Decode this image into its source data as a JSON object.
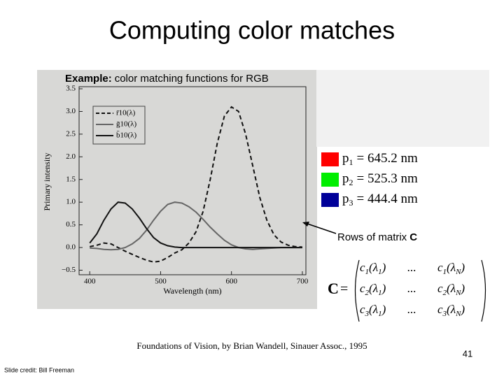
{
  "title": "Computing color matches",
  "example": {
    "bold": "Example:",
    "text": "color matching functions for RGB"
  },
  "chart_data": {
    "type": "line",
    "xlabel": "Wavelength (nm)",
    "ylabel": "Primary intensity",
    "x": [
      400,
      410,
      420,
      430,
      440,
      450,
      460,
      470,
      480,
      490,
      500,
      510,
      520,
      530,
      540,
      550,
      560,
      570,
      580,
      590,
      600,
      610,
      620,
      630,
      640,
      650,
      660,
      670,
      680,
      690,
      700
    ],
    "series": [
      {
        "name": "r̄10(λ)",
        "color": "#111111",
        "dashed": true,
        "values": [
          0.02,
          0.05,
          0.1,
          0.08,
          0.0,
          -0.08,
          -0.15,
          -0.22,
          -0.28,
          -0.32,
          -0.3,
          -0.22,
          -0.12,
          -0.05,
          0.1,
          0.35,
          0.8,
          1.5,
          2.3,
          2.9,
          3.1,
          3.0,
          2.5,
          1.8,
          1.1,
          0.6,
          0.28,
          0.12,
          0.05,
          0.02,
          0.01
        ]
      },
      {
        "name": "ḡ10(λ)",
        "color": "#666666",
        "dashed": false,
        "values": [
          -0.01,
          -0.02,
          -0.04,
          -0.05,
          -0.04,
          0.0,
          0.08,
          0.2,
          0.38,
          0.6,
          0.8,
          0.95,
          1.0,
          0.98,
          0.9,
          0.78,
          0.62,
          0.45,
          0.3,
          0.16,
          0.06,
          0.0,
          -0.03,
          -0.04,
          -0.03,
          -0.02,
          -0.01,
          0,
          0,
          0,
          0
        ]
      },
      {
        "name": "b̄10(λ)",
        "color": "#111111",
        "dashed": false,
        "values": [
          0.1,
          0.3,
          0.6,
          0.85,
          1.0,
          0.98,
          0.85,
          0.65,
          0.42,
          0.22,
          0.1,
          0.04,
          0.01,
          0,
          0,
          0,
          0,
          0,
          0,
          0,
          0,
          0,
          0,
          0,
          0,
          0,
          0,
          0,
          0,
          0,
          0
        ]
      }
    ],
    "xlim": [
      385,
      705
    ],
    "xticks": [
      400,
      500,
      600,
      700
    ],
    "ylim": [
      -0.6,
      3.5
    ],
    "yticks": [
      {
        "value": -0.5,
        "label": "−0.5"
      },
      {
        "value": 0,
        "label": "0.0"
      },
      0.5,
      {
        "value": 1,
        "label": "1.0"
      },
      1.5,
      {
        "value": 2,
        "label": "2.0"
      },
      2.5,
      {
        "value": 3,
        "label": "3.0"
      },
      3.5
    ],
    "legend": "upper left"
  },
  "primaries": [
    {
      "color": "#ff0000",
      "p": "p",
      "sub": "1",
      "text": "= 645.2 nm"
    },
    {
      "color": "#00ee00",
      "p": "p",
      "sub": "2",
      "text": "= 525.3 nm"
    },
    {
      "color": "#000099",
      "p": "p",
      "sub": "3",
      "text": "= 444.4 nm"
    }
  ],
  "rows_note": {
    "text": "Rows of matrix",
    "bold": "C"
  },
  "matrix": {
    "lhs": "C",
    "eq": "=",
    "rows": [
      [
        [
          "c",
          "1",
          "(λ",
          "1",
          ")"
        ],
        [
          "..."
        ],
        [
          "c",
          "1",
          "(λ",
          "N",
          ")"
        ]
      ],
      [
        [
          "c",
          "2",
          "(λ",
          "1",
          ")"
        ],
        [
          "..."
        ],
        [
          "c",
          "2",
          "(λ",
          "N",
          ")"
        ]
      ],
      [
        [
          "c",
          "3",
          "(λ",
          "1",
          ")"
        ],
        [
          "..."
        ],
        [
          "c",
          "3",
          "(λ",
          "N",
          ")"
        ]
      ]
    ]
  },
  "citation": "Foundations of Vision, by Brian Wandell, Sinauer Assoc., 1995",
  "page_number": "41",
  "credit": "Slide credit: Bill Freeman"
}
